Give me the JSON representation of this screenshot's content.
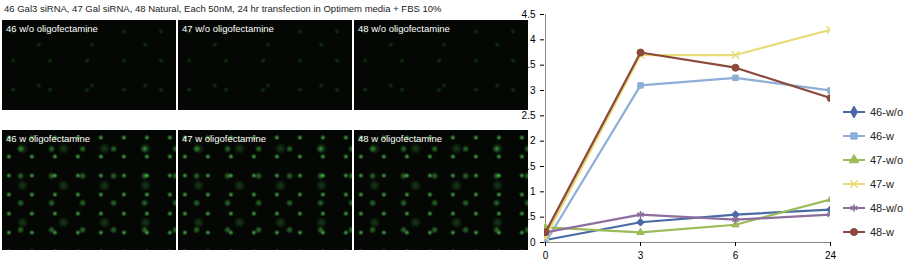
{
  "figure": {
    "title": "46 Gal3 siRNA, 47 Gal siRNA, 48 Natural, Each 50nM, 24 hr transfection in Optimem media + FBS 10%",
    "panels": [
      "46 w/o oligofectamine",
      "47 w/o oligofectamine",
      "48 w/o oligofectamine",
      "46 w oligofectamine",
      "47 w oligofectamine",
      "48 w oligofectamine"
    ]
  },
  "chart_data": {
    "type": "line",
    "categories": [
      "0",
      "3",
      "6",
      "24"
    ],
    "series": [
      {
        "name": "46-w/o",
        "color": "#4a6aa5",
        "marker": "diamond",
        "values": [
          0.05,
          0.4,
          0.55,
          0.65
        ]
      },
      {
        "name": "46-w",
        "color": "#8eaed6",
        "marker": "square",
        "values": [
          0.0,
          3.1,
          3.25,
          3.0
        ]
      },
      {
        "name": "47-w/o",
        "color": "#9bbb59",
        "marker": "triangle",
        "values": [
          0.3,
          0.2,
          0.35,
          0.85
        ]
      },
      {
        "name": "47-w",
        "color": "#e8dc78",
        "marker": "times",
        "values": [
          0.1,
          3.7,
          3.7,
          4.2
        ]
      },
      {
        "name": "48-w/o",
        "color": "#8c6f9f",
        "marker": "asterisk",
        "values": [
          0.2,
          0.55,
          0.45,
          0.55
        ]
      },
      {
        "name": "48-w",
        "color": "#8b4a3c",
        "marker": "circle",
        "values": [
          0.2,
          3.75,
          3.45,
          2.85
        ]
      }
    ],
    "ylim": [
      0,
      4.5
    ],
    "yticks": [
      0,
      0.5,
      1,
      1.5,
      2,
      2.5,
      3,
      3.5,
      4,
      4.5
    ],
    "grid": false,
    "legend": "right"
  }
}
